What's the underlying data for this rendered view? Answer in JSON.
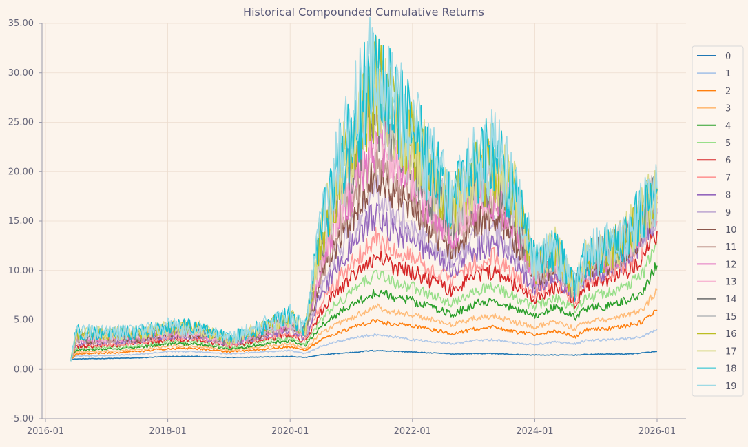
{
  "chart_data": {
    "type": "line",
    "title": "Historical Compounded Cumulative Returns",
    "xlabel": "",
    "ylabel": "",
    "grid": true,
    "legend_position": "right",
    "ylim": [
      -5,
      35
    ],
    "yticks": [
      "-5.00",
      "0.00",
      "5.00",
      "10.00",
      "15.00",
      "20.00",
      "25.00",
      "30.00",
      "35.00"
    ],
    "xticks": [
      "2016-01",
      "2018-01",
      "2020-01",
      "2022-01",
      "2024-01",
      "2026-01"
    ],
    "x": [
      "2016-06",
      "2016-07",
      "2017-01",
      "2017-07",
      "2018-01",
      "2018-07",
      "2019-01",
      "2019-07",
      "2020-01",
      "2020-04",
      "2020-07",
      "2020-10",
      "2021-01",
      "2021-04",
      "2021-06",
      "2021-09",
      "2022-01",
      "2022-05",
      "2022-09",
      "2023-01",
      "2023-05",
      "2023-09",
      "2024-01",
      "2024-05",
      "2024-09",
      "2024-11",
      "2025-03",
      "2025-07",
      "2025-10",
      "2026-01"
    ],
    "series": [
      {
        "name": "0",
        "values": [
          1.0,
          1.05,
          1.1,
          1.15,
          1.3,
          1.3,
          1.2,
          1.25,
          1.3,
          1.2,
          1.45,
          1.6,
          1.7,
          1.85,
          1.9,
          1.85,
          1.75,
          1.65,
          1.55,
          1.6,
          1.6,
          1.5,
          1.45,
          1.45,
          1.45,
          1.5,
          1.55,
          1.55,
          1.65,
          1.8
        ]
      },
      {
        "name": "1",
        "values": [
          1.0,
          1.35,
          1.4,
          1.5,
          1.8,
          1.8,
          1.55,
          1.75,
          1.9,
          1.6,
          2.3,
          2.8,
          3.1,
          3.4,
          3.5,
          3.3,
          3.0,
          2.8,
          2.6,
          2.9,
          3.0,
          2.7,
          2.5,
          2.8,
          2.6,
          2.9,
          3.0,
          3.1,
          3.3,
          4.1
        ]
      },
      {
        "name": "2",
        "values": [
          1.0,
          1.55,
          1.65,
          1.8,
          2.1,
          2.1,
          1.75,
          2.0,
          2.3,
          1.9,
          3.0,
          3.6,
          4.2,
          4.7,
          4.9,
          4.6,
          4.4,
          4.0,
          3.6,
          4.1,
          4.3,
          3.8,
          3.5,
          3.9,
          3.3,
          4.0,
          4.1,
          4.4,
          4.8,
          6.0
        ]
      },
      {
        "name": "3",
        "values": [
          1.0,
          1.75,
          1.85,
          2.0,
          2.35,
          2.35,
          1.9,
          2.25,
          2.6,
          2.1,
          3.6,
          4.5,
          5.2,
          5.9,
          6.3,
          5.8,
          5.5,
          5.0,
          4.5,
          5.1,
          5.4,
          4.8,
          4.3,
          4.9,
          4.1,
          4.9,
          5.0,
          5.5,
          6.0,
          8.0
        ]
      },
      {
        "name": "4",
        "values": [
          1.0,
          1.95,
          2.05,
          2.2,
          2.6,
          2.6,
          2.05,
          2.5,
          2.9,
          2.4,
          4.3,
          5.5,
          6.5,
          7.4,
          7.9,
          7.3,
          6.9,
          6.2,
          5.6,
          6.6,
          7.0,
          6.2,
          5.4,
          6.3,
          5.2,
          6.1,
          6.4,
          7.0,
          7.8,
          10.5
        ]
      },
      {
        "name": "5",
        "values": [
          1.0,
          2.15,
          2.25,
          2.4,
          2.85,
          2.85,
          2.2,
          2.75,
          3.2,
          2.6,
          5.0,
          6.6,
          7.8,
          9.0,
          9.6,
          8.8,
          8.3,
          7.4,
          6.7,
          7.9,
          8.4,
          7.3,
          6.3,
          7.3,
          6.0,
          7.3,
          7.6,
          8.4,
          9.5,
          12.8
        ]
      },
      {
        "name": "6",
        "values": [
          1.0,
          2.35,
          2.4,
          2.6,
          3.05,
          3.05,
          2.35,
          2.95,
          3.5,
          2.8,
          5.8,
          7.7,
          9.2,
          10.7,
          11.5,
          10.5,
          9.9,
          8.8,
          7.9,
          9.3,
          9.9,
          8.6,
          7.1,
          8.3,
          6.6,
          8.5,
          8.9,
          9.9,
          11.3,
          14.0
        ]
      },
      {
        "name": "7",
        "values": [
          1.0,
          2.5,
          2.55,
          2.75,
          3.2,
          3.2,
          2.45,
          3.1,
          3.75,
          3.0,
          6.6,
          8.9,
          10.7,
          12.5,
          13.5,
          12.2,
          11.4,
          10.1,
          9.0,
          10.6,
          11.3,
          9.7,
          7.7,
          9.0,
          6.9,
          9.2,
          9.6,
          10.7,
          12.3,
          15.0
        ]
      },
      {
        "name": "8",
        "values": [
          1.0,
          2.7,
          2.7,
          2.9,
          3.35,
          3.35,
          2.55,
          3.25,
          4.0,
          3.2,
          7.5,
          10.2,
          12.4,
          14.6,
          15.8,
          14.1,
          13.0,
          11.5,
          10.2,
          12.0,
          12.8,
          11.0,
          8.3,
          9.6,
          7.2,
          9.6,
          10.0,
          11.2,
          12.9,
          15.8
        ]
      },
      {
        "name": "9",
        "values": [
          1.0,
          2.85,
          2.85,
          3.0,
          3.45,
          3.45,
          2.6,
          3.4,
          4.2,
          3.35,
          8.4,
          11.5,
          14.0,
          16.6,
          18.0,
          16.0,
          14.6,
          12.8,
          11.3,
          13.3,
          14.2,
          12.2,
          8.8,
          10.2,
          7.4,
          10.0,
          10.4,
          11.6,
          13.4,
          16.3
        ]
      },
      {
        "name": "10",
        "values": [
          1.0,
          2.95,
          2.95,
          3.1,
          3.55,
          3.55,
          2.65,
          3.5,
          4.4,
          3.5,
          9.2,
          12.7,
          15.6,
          18.6,
          20.2,
          17.9,
          16.2,
          14.0,
          12.4,
          14.5,
          15.5,
          13.3,
          9.2,
          10.7,
          7.6,
          10.3,
          10.8,
          12.0,
          13.9,
          16.9
        ]
      },
      {
        "name": "11",
        "values": [
          1.0,
          3.05,
          3.05,
          3.2,
          3.65,
          3.65,
          2.7,
          3.6,
          4.55,
          3.6,
          9.9,
          13.8,
          17.0,
          20.3,
          22.0,
          19.5,
          17.6,
          15.1,
          13.3,
          15.6,
          16.6,
          14.2,
          9.5,
          11.1,
          7.7,
          10.6,
          11.1,
          12.4,
          14.3,
          17.2
        ]
      },
      {
        "name": "12",
        "values": [
          1.0,
          3.15,
          3.15,
          3.3,
          3.75,
          3.75,
          2.75,
          3.7,
          4.7,
          3.7,
          10.6,
          14.8,
          18.3,
          21.8,
          23.7,
          21.0,
          18.9,
          16.1,
          14.1,
          16.6,
          17.6,
          15.0,
          9.8,
          11.4,
          7.8,
          10.8,
          11.3,
          12.7,
          14.7,
          17.5
        ]
      },
      {
        "name": "13",
        "values": [
          1.0,
          3.25,
          3.25,
          3.4,
          3.85,
          3.85,
          2.8,
          3.8,
          4.85,
          3.8,
          11.3,
          15.8,
          19.5,
          23.2,
          25.2,
          22.4,
          20.0,
          17.0,
          14.8,
          17.5,
          18.5,
          15.7,
          10.0,
          11.6,
          7.9,
          11.0,
          11.5,
          12.9,
          15.0,
          17.7
        ]
      },
      {
        "name": "14",
        "values": [
          1.0,
          3.35,
          3.35,
          3.5,
          3.95,
          3.95,
          2.85,
          3.9,
          5.0,
          3.9,
          12.0,
          16.7,
          20.6,
          24.5,
          26.6,
          23.6,
          21.0,
          17.8,
          15.4,
          18.2,
          19.3,
          16.3,
          10.2,
          11.8,
          7.95,
          11.1,
          11.7,
          13.1,
          15.3,
          17.9
        ]
      },
      {
        "name": "15",
        "values": [
          1.0,
          3.45,
          3.45,
          3.6,
          4.05,
          4.05,
          2.9,
          4.0,
          5.1,
          3.95,
          12.6,
          17.5,
          21.6,
          25.7,
          27.8,
          24.7,
          21.9,
          18.5,
          16.0,
          18.9,
          20.0,
          16.9,
          10.3,
          11.9,
          8.0,
          11.2,
          11.8,
          13.3,
          15.5,
          18.0
        ]
      },
      {
        "name": "16",
        "values": [
          1.0,
          3.55,
          3.55,
          3.7,
          4.15,
          4.15,
          2.95,
          4.1,
          5.2,
          4.0,
          13.2,
          18.2,
          22.5,
          26.7,
          28.8,
          25.6,
          22.7,
          19.1,
          16.5,
          19.5,
          20.6,
          17.4,
          10.4,
          12.0,
          8.05,
          11.3,
          11.9,
          13.4,
          15.6,
          18.1
        ]
      },
      {
        "name": "17",
        "values": [
          1.0,
          3.65,
          3.6,
          3.75,
          4.2,
          4.2,
          3.0,
          4.15,
          5.3,
          4.05,
          13.7,
          18.8,
          23.3,
          27.5,
          29.6,
          26.3,
          23.3,
          19.6,
          16.9,
          20.0,
          21.1,
          17.8,
          10.5,
          12.1,
          8.1,
          11.4,
          12.0,
          13.5,
          15.7,
          18.1
        ]
      },
      {
        "name": "18",
        "values": [
          1.0,
          3.75,
          3.65,
          3.8,
          4.25,
          4.25,
          3.05,
          4.2,
          5.4,
          4.1,
          14.2,
          19.4,
          24.0,
          28.2,
          30.2,
          26.9,
          23.8,
          20.0,
          17.2,
          20.4,
          21.5,
          18.1,
          10.6,
          12.2,
          8.15,
          11.5,
          12.1,
          13.6,
          15.8,
          18.2
        ]
      },
      {
        "name": "19",
        "values": [
          1.0,
          3.85,
          3.7,
          3.85,
          4.3,
          4.3,
          3.1,
          4.25,
          5.5,
          4.15,
          14.6,
          19.9,
          24.6,
          28.8,
          30.6,
          27.4,
          24.2,
          20.3,
          17.5,
          20.7,
          21.8,
          18.4,
          10.7,
          12.3,
          8.2,
          11.6,
          12.2,
          13.7,
          15.9,
          18.3
        ]
      }
    ],
    "colors": [
      "#1f77b4",
      "#aec7e8",
      "#ff7f0e",
      "#ffbb78",
      "#2ca02c",
      "#98df8a",
      "#d62728",
      "#ff9896",
      "#9467bd",
      "#c5b0d5",
      "#8c564b",
      "#c49c94",
      "#e377c2",
      "#f7b6d2",
      "#7f7f7f",
      "#c7c7c7",
      "#bcbd22",
      "#dbdb8d",
      "#17becf",
      "#9edae5"
    ]
  }
}
